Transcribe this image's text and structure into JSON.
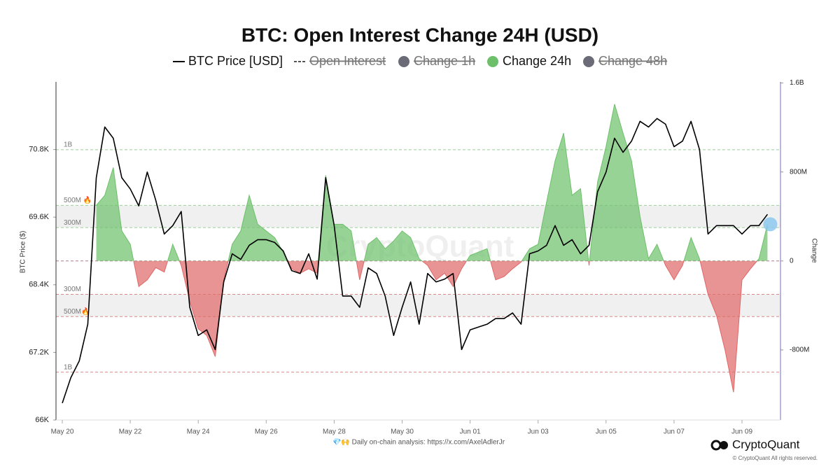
{
  "chart_data": {
    "type": "line-area-dual",
    "title": "BTC: Open Interest Change 24H (USD)",
    "y_label": "BTC Price ($)",
    "y2_label": "Change",
    "watermark": "CryptoQuant",
    "footer_note": "💎🙌 Daily on-chain analysis: https://x.com/AxelAdlerJr",
    "brand": "CryptoQuant",
    "copyright": "© CryptoQuant All rights reserved.",
    "categories": [
      "May 20",
      null,
      null,
      null,
      null,
      null,
      null,
      null,
      "May 22",
      null,
      null,
      null,
      null,
      null,
      null,
      null,
      "May 24",
      null,
      null,
      null,
      null,
      null,
      null,
      null,
      "May 26",
      null,
      null,
      null,
      null,
      null,
      null,
      null,
      "May 28",
      null,
      null,
      null,
      null,
      null,
      null,
      null,
      "May 30",
      null,
      null,
      null,
      null,
      null,
      null,
      null,
      "Jun 01",
      null,
      null,
      null,
      null,
      null,
      null,
      null,
      "Jun 03",
      null,
      null,
      null,
      null,
      null,
      null,
      null,
      "Jun 05",
      null,
      null,
      null,
      null,
      null,
      null,
      null,
      "Jun 07",
      null,
      null,
      null,
      null,
      null,
      null,
      null,
      "Jun 09",
      null,
      null,
      null
    ],
    "series": [
      {
        "name": "BTC Price [USD]",
        "color": "#000000",
        "kind": "line",
        "axis": "y",
        "values": [
          66300,
          66750,
          67050,
          67700,
          70300,
          71200,
          71000,
          70300,
          70100,
          69800,
          70400,
          69900,
          69300,
          69450,
          69700,
          68000,
          67500,
          67600,
          67250,
          68450,
          68950,
          68850,
          69100,
          69200,
          69200,
          69150,
          69000,
          68650,
          68600,
          68950,
          68500,
          70300,
          69450,
          68200,
          68200,
          68000,
          68700,
          68600,
          68200,
          67500,
          68000,
          68450,
          67700,
          68600,
          68450,
          68500,
          68600,
          67250,
          67600,
          67650,
          67700,
          67800,
          67800,
          67900,
          67700,
          68950,
          69000,
          69100,
          69450,
          69100,
          69200,
          68950,
          69100,
          70050,
          70400,
          71000,
          70750,
          70950,
          71300,
          71200,
          71350,
          71250,
          70850,
          70950,
          71300,
          70800,
          69300,
          69450,
          69450,
          69450,
          69300,
          69450,
          69450,
          69650
        ]
      },
      {
        "name": "Change 24h",
        "color": "#6cc06a",
        "negative_color": "#e06666",
        "kind": "area",
        "axis": "y2",
        "values": [
          null,
          null,
          null,
          null,
          500000000,
          590000000,
          840000000,
          270000000,
          150000000,
          -230000000,
          -170000000,
          -60000000,
          -100000000,
          150000000,
          -40000000,
          -360000000,
          -610000000,
          -670000000,
          -860000000,
          -170000000,
          150000000,
          270000000,
          590000000,
          330000000,
          270000000,
          210000000,
          80000000,
          -70000000,
          -110000000,
          -70000000,
          -110000000,
          770000000,
          330000000,
          330000000,
          270000000,
          -170000000,
          150000000,
          210000000,
          110000000,
          180000000,
          270000000,
          210000000,
          20000000,
          -40000000,
          -170000000,
          -110000000,
          -230000000,
          -70000000,
          50000000,
          80000000,
          110000000,
          -170000000,
          -140000000,
          -70000000,
          -10000000,
          110000000,
          150000000,
          530000000,
          900000000,
          1150000000,
          590000000,
          650000000,
          -40000000,
          710000000,
          1030000000,
          1410000000,
          1150000000,
          900000000,
          400000000,
          20000000,
          150000000,
          -40000000,
          -170000000,
          -40000000,
          210000000,
          20000000,
          -300000000,
          -490000000,
          -800000000,
          -1180000000,
          -170000000,
          -70000000,
          20000000,
          330000000
        ]
      }
    ],
    "hidden_series": [
      {
        "name": "Open Interest",
        "color": "#555555",
        "style": "dashed"
      },
      {
        "name": "Change 1h",
        "color": "#6b6b78",
        "style": "dot"
      },
      {
        "name": "Change 48h",
        "color": "#6b6b78",
        "style": "dot"
      }
    ],
    "ylim": [
      66000,
      72000
    ],
    "yticks": [
      {
        "value": 66000,
        "label": "66K"
      },
      {
        "value": 67200,
        "label": "67.2K"
      },
      {
        "value": 68400,
        "label": "68.4K"
      },
      {
        "value": 69600,
        "label": "69.6K"
      },
      {
        "value": 70800,
        "label": "70.8K"
      }
    ],
    "y2lim": [
      -1430000000,
      1610000000
    ],
    "y2ticks": [
      {
        "value": -800000000,
        "label": "-800M"
      },
      0,
      {
        "value": 800000000,
        "label": "800M"
      },
      {
        "value": 1600000000,
        "label": "1.6B"
      }
    ],
    "reference_lines": [
      {
        "value": 1000000000,
        "label": "1B"
      },
      {
        "value": 500000000,
        "label": "500M 🔥"
      },
      {
        "value": 300000000,
        "label": "300M"
      },
      {
        "value": -300000000,
        "label": "300M"
      },
      {
        "value": -500000000,
        "label": "500M🔥"
      },
      {
        "value": -1000000000,
        "label": "1B"
      }
    ],
    "bands": [
      [
        300000000,
        500000000
      ],
      [
        -500000000,
        -300000000
      ]
    ],
    "grid": false
  }
}
